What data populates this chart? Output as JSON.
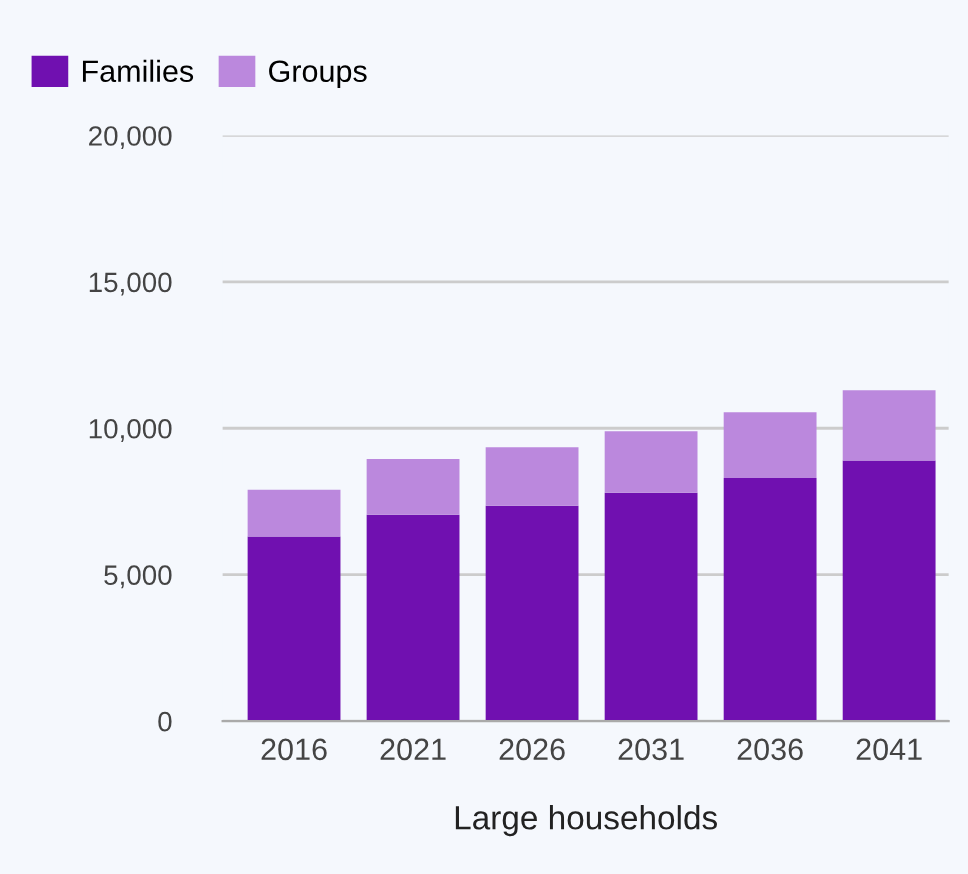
{
  "chart_data": {
    "type": "bar",
    "stacked": true,
    "xlabel": "Large households",
    "categories": [
      "2016",
      "2021",
      "2026",
      "2031",
      "2036",
      "2041"
    ],
    "series": [
      {
        "name": "Families",
        "color": "#7010b0",
        "values": [
          6300,
          7050,
          7350,
          7800,
          8300,
          8900
        ]
      },
      {
        "name": "Groups",
        "color": "#bb88dd",
        "values": [
          1600,
          1900,
          2000,
          2100,
          2250,
          2400
        ]
      }
    ],
    "ylim": [
      0,
      20000
    ],
    "yticks": [
      {
        "value": 0,
        "label": "0"
      },
      {
        "value": 5000,
        "label": "5,000"
      },
      {
        "value": 10000,
        "label": "10,000"
      },
      {
        "value": 15000,
        "label": "15,000"
      },
      {
        "value": 20000,
        "label": "20,000"
      }
    ],
    "grid": "y",
    "legend": "top left"
  }
}
